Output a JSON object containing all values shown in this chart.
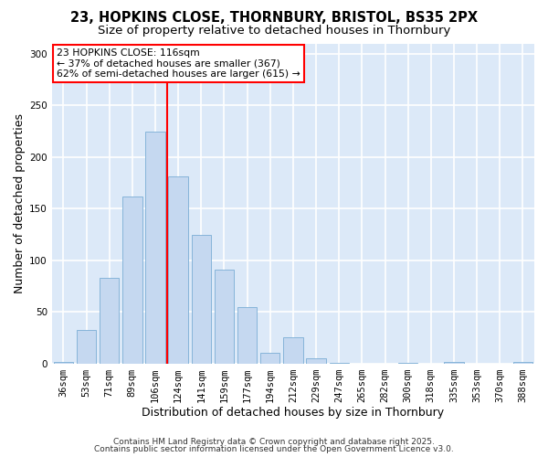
{
  "title_line1": "23, HOPKINS CLOSE, THORNBURY, BRISTOL, BS35 2PX",
  "title_line2": "Size of property relative to detached houses in Thornbury",
  "xlabel": "Distribution of detached houses by size in Thornbury",
  "ylabel": "Number of detached properties",
  "categories": [
    "36sqm",
    "53sqm",
    "71sqm",
    "89sqm",
    "106sqm",
    "124sqm",
    "141sqm",
    "159sqm",
    "177sqm",
    "194sqm",
    "212sqm",
    "229sqm",
    "247sqm",
    "265sqm",
    "282sqm",
    "300sqm",
    "318sqm",
    "335sqm",
    "353sqm",
    "370sqm",
    "388sqm"
  ],
  "values": [
    2,
    33,
    83,
    162,
    225,
    181,
    125,
    91,
    55,
    11,
    26,
    5,
    1,
    0,
    0,
    1,
    0,
    2,
    0,
    0,
    2
  ],
  "bar_color": "#c5d8f0",
  "bar_edgecolor": "#7aadd4",
  "vline_x": 4.5,
  "vline_color": "red",
  "annotation_text": "23 HOPKINS CLOSE: 116sqm\n← 37% of detached houses are smaller (367)\n62% of semi-detached houses are larger (615) →",
  "annotation_box_color": "white",
  "annotation_box_edgecolor": "red",
  "ylim": [
    0,
    310
  ],
  "yticks": [
    0,
    50,
    100,
    150,
    200,
    250,
    300
  ],
  "background_color": "#dce9f8",
  "grid_color": "white",
  "footer_line1": "Contains HM Land Registry data © Crown copyright and database right 2025.",
  "footer_line2": "Contains public sector information licensed under the Open Government Licence v3.0.",
  "title_fontsize": 10.5,
  "subtitle_fontsize": 9.5,
  "xlabel_fontsize": 9,
  "ylabel_fontsize": 9,
  "tick_fontsize": 7.5,
  "annot_fontsize": 7.8,
  "footer_fontsize": 6.5
}
